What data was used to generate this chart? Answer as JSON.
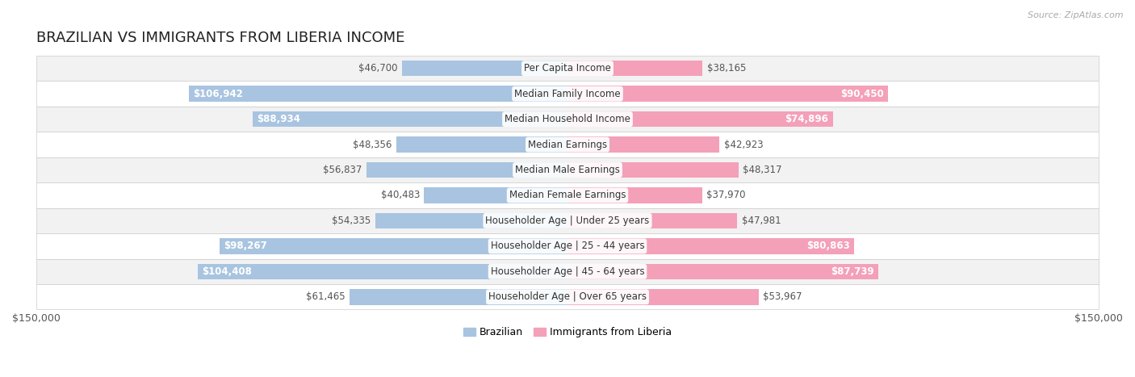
{
  "title": "BRAZILIAN VS IMMIGRANTS FROM LIBERIA INCOME",
  "source": "Source: ZipAtlas.com",
  "max_value": 150000,
  "categories": [
    "Per Capita Income",
    "Median Family Income",
    "Median Household Income",
    "Median Earnings",
    "Median Male Earnings",
    "Median Female Earnings",
    "Householder Age | Under 25 years",
    "Householder Age | 25 - 44 years",
    "Householder Age | 45 - 64 years",
    "Householder Age | Over 65 years"
  ],
  "brazilian_values": [
    46700,
    106942,
    88934,
    48356,
    56837,
    40483,
    54335,
    98267,
    104408,
    61465
  ],
  "liberia_values": [
    38165,
    90450,
    74896,
    42923,
    48317,
    37970,
    47981,
    80863,
    87739,
    53967
  ],
  "brazilian_color": "#a8c4e0",
  "liberia_color": "#f4a0b8",
  "label_color_dark": "#555555",
  "label_color_white": "#ffffff",
  "bar_height": 0.62,
  "row_bg_odd": "#f2f2f2",
  "row_bg_even": "#ffffff",
  "title_fontsize": 13,
  "label_fontsize": 8.5,
  "category_fontsize": 8.5,
  "legend_fontsize": 9,
  "inside_label_threshold": 65000,
  "border_color": "#cccccc"
}
